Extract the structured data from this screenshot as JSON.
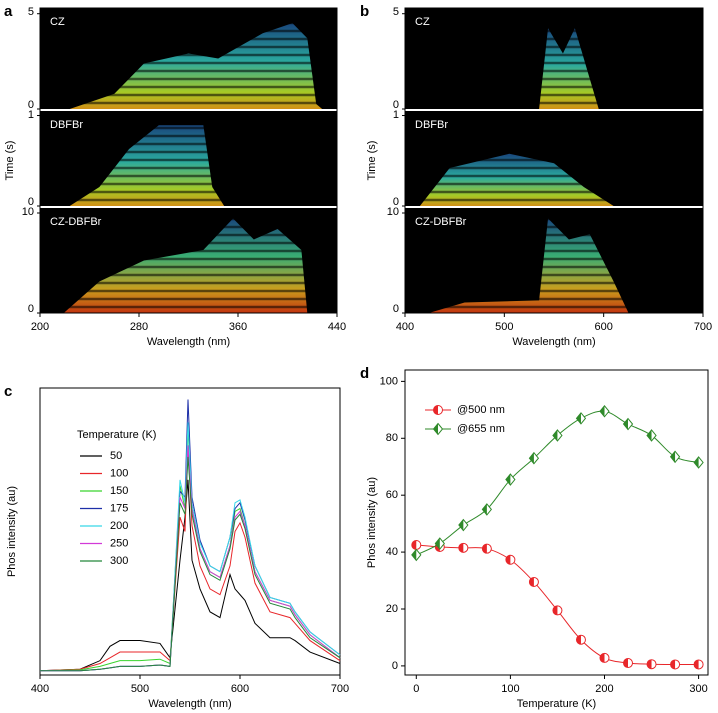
{
  "chart_data": [
    {
      "type": "streak",
      "panel_label": "a",
      "xlabel": "Wavelength (nm)",
      "ylabel": "Time (s)",
      "xlim": [
        200,
        440
      ],
      "xticks": [
        200,
        280,
        360,
        440
      ],
      "subplots": [
        {
          "label": "CZ",
          "ylim": [
            0,
            5.3
          ],
          "yticks": [
            0,
            5
          ]
        },
        {
          "label": "DBFBr",
          "ylim": [
            0,
            1.05
          ],
          "yticks": [
            0,
            1
          ]
        },
        {
          "label": "CZ-DBFBr",
          "ylim": [
            0,
            10.5
          ],
          "yticks": [
            0,
            10
          ]
        }
      ]
    },
    {
      "type": "streak",
      "panel_label": "b",
      "xlabel": "Wavelength (nm)",
      "ylabel": "Time (s)",
      "xlim": [
        400,
        700
      ],
      "xticks": [
        400,
        500,
        600,
        700
      ],
      "subplots": [
        {
          "label": "CZ",
          "ylim": [
            0,
            5.3
          ],
          "yticks": [
            0,
            5
          ]
        },
        {
          "label": "DBFBr",
          "ylim": [
            0,
            1.05
          ],
          "yticks": [
            0,
            1
          ]
        },
        {
          "label": "CZ-DBFBr",
          "ylim": [
            0,
            10.5
          ],
          "yticks": [
            0,
            10
          ]
        }
      ]
    },
    {
      "type": "line",
      "panel_label": "c",
      "xlabel": "Wavelength (nm)",
      "ylabel": "Phos intensity (au)",
      "legend_title": "Temperature (K)",
      "xlim": [
        400,
        700
      ],
      "xticks": [
        400,
        500,
        600,
        700
      ],
      "ylim": [
        0,
        100
      ],
      "x": [
        400,
        440,
        460,
        470,
        480,
        500,
        520,
        530,
        540,
        545,
        548,
        552,
        560,
        570,
        580,
        590,
        595,
        600,
        605,
        615,
        630,
        650,
        655,
        670,
        700
      ],
      "series": [
        {
          "name": "50",
          "color": "#000000",
          "values": [
            1.5,
            2,
            5,
            10,
            12,
            12,
            11,
            6,
            40,
            55,
            68,
            40,
            30,
            22,
            20,
            35,
            30,
            28,
            26,
            18,
            13,
            13,
            12,
            8,
            4
          ]
        },
        {
          "name": "100",
          "color": "#e8262a",
          "values": [
            1.5,
            2,
            4,
            6,
            8,
            8,
            8,
            5,
            55,
            50,
            80,
            52,
            38,
            30,
            28,
            38,
            50,
            53,
            48,
            32,
            22,
            20,
            18,
            12,
            5
          ]
        },
        {
          "name": "150",
          "color": "#39d42f",
          "values": [
            1.5,
            1.8,
            3,
            4,
            5,
            5,
            5.5,
            4,
            66,
            58,
            86,
            58,
            44,
            36,
            34,
            45,
            57,
            58,
            52,
            36,
            26,
            24,
            21,
            14,
            6
          ]
        },
        {
          "name": "175",
          "color": "#1d2fa8",
          "values": [
            1.5,
            1.5,
            2,
            2.5,
            3,
            3,
            3.5,
            3,
            64,
            62,
            96,
            62,
            47,
            38,
            36,
            48,
            58,
            60,
            54,
            38,
            27,
            25,
            22,
            15,
            7
          ]
        },
        {
          "name": "200",
          "color": "#38d8e8",
          "values": [
            1.5,
            1.5,
            2,
            2.5,
            3,
            3,
            3.5,
            3,
            68,
            60,
            88,
            60,
            46,
            38,
            36,
            48,
            60,
            61,
            55,
            38,
            27,
            25,
            22,
            15,
            7
          ]
        },
        {
          "name": "250",
          "color": "#d23ad8",
          "values": [
            1.5,
            1.5,
            2,
            2.5,
            3,
            3,
            3.5,
            3,
            62,
            58,
            80,
            58,
            44,
            36,
            34,
            45,
            55,
            57,
            52,
            36,
            26,
            24,
            21,
            14,
            6
          ]
        },
        {
          "name": "300",
          "color": "#23873a",
          "values": [
            1.5,
            1.5,
            2,
            2.5,
            3,
            3,
            3.5,
            3,
            60,
            56,
            76,
            56,
            43,
            35,
            33,
            44,
            54,
            56,
            51,
            35,
            25,
            23,
            20,
            13,
            6
          ]
        }
      ]
    },
    {
      "type": "marker-line",
      "panel_label": "d",
      "xlabel": "Temperature (K)",
      "ylabel": "Phos intensity (au)",
      "xlim": [
        -12,
        310
      ],
      "xticks": [
        0,
        100,
        200,
        300
      ],
      "ylim": [
        -3.2,
        104
      ],
      "yticks": [
        0,
        20,
        40,
        60,
        80,
        100
      ],
      "x": [
        0,
        25,
        50,
        75,
        100,
        125,
        150,
        175,
        200,
        225,
        250,
        275,
        300
      ],
      "series": [
        {
          "name": "@500 nm",
          "color": "#e8262a",
          "marker": "circle",
          "values": [
            42.5,
            41.8,
            41.5,
            41.2,
            37.3,
            29.5,
            19.5,
            9.2,
            2.8,
            1.0,
            0.6,
            0.5,
            0.5
          ]
        },
        {
          "name": "@655 nm",
          "color": "#2f8a2a",
          "marker": "diamond",
          "values": [
            39,
            43,
            49.5,
            55,
            65.5,
            73,
            81,
            87,
            89.5,
            85,
            81,
            73.5,
            71.5
          ]
        }
      ]
    }
  ]
}
